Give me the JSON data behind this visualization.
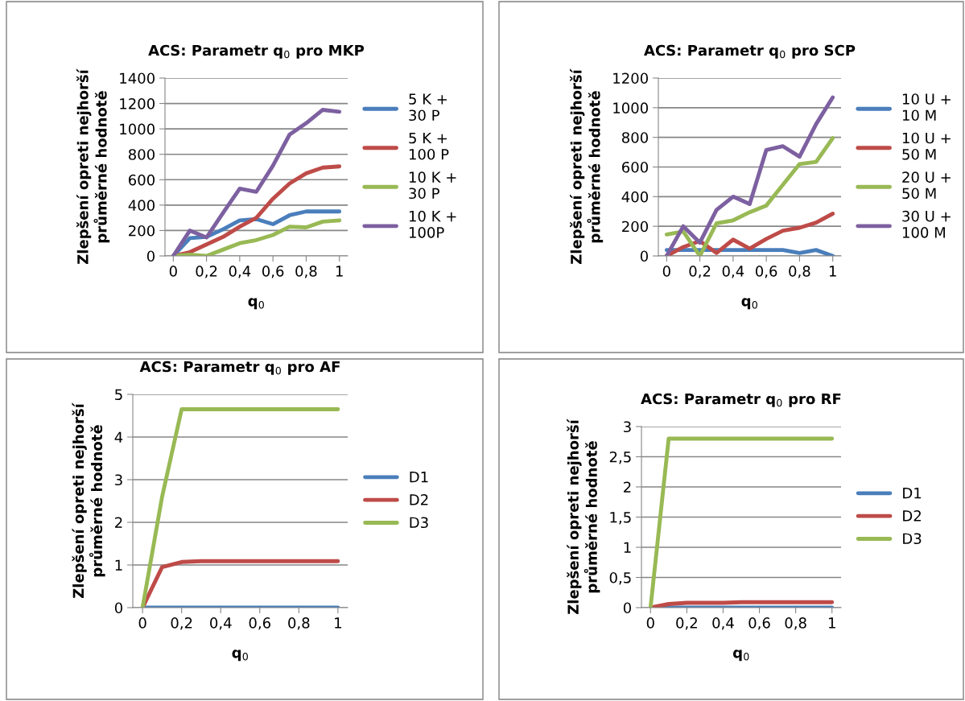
{
  "chart_data": [
    {
      "type": "line",
      "title": "ACS: Parametr q$_{0}$ pro MKP",
      "xlabel": "q$_{0}$",
      "ylabel": "Zlepšení opreti nejhorší\nprůměrné hodnotě",
      "x": [
        0,
        0.1,
        0.2,
        0.3,
        0.4,
        0.5,
        0.6,
        0.7,
        0.8,
        0.9,
        1
      ],
      "xlim": [
        -0.05,
        1.05
      ],
      "xticks": [
        0,
        {
          "value": 0.2,
          "label": "0,2"
        },
        {
          "value": 0.4,
          "label": "0,4"
        },
        {
          "value": 0.6,
          "label": "0,6"
        },
        {
          "value": 0.8,
          "label": "0,8"
        },
        1
      ],
      "ylim": [
        0,
        1400
      ],
      "yticks": [
        0,
        200,
        400,
        600,
        800,
        1000,
        1200,
        1400
      ],
      "grid": "y",
      "legend": "right",
      "series": [
        {
          "name": "5 K +\n30 P",
          "color": "#4a7ebb",
          "values": [
            0,
            140,
            150,
            210,
            280,
            290,
            250,
            320,
            350,
            350,
            350
          ]
        },
        {
          "name": "5 K +\n100 P",
          "color": "#be4b48",
          "values": [
            0,
            30,
            90,
            150,
            230,
            300,
            450,
            570,
            650,
            695,
            705
          ]
        },
        {
          "name": "10 K +\n30 P",
          "color": "#98b954",
          "values": [
            0,
            10,
            0,
            50,
            100,
            125,
            165,
            230,
            225,
            270,
            280
          ]
        },
        {
          "name": "10 K +\n100P",
          "color": "#7d60a0",
          "values": [
            0,
            200,
            145,
            340,
            530,
            505,
            710,
            955,
            1045,
            1150,
            1135
          ]
        }
      ]
    },
    {
      "type": "line",
      "title": "ACS: Parametr q$_{0}$ pro SCP",
      "xlabel": "q$_{0}$",
      "ylabel": "Zlepšení opreti nejhorší\nprůměrné hodnotě",
      "x": [
        0,
        0.1,
        0.2,
        0.3,
        0.4,
        0.5,
        0.6,
        0.7,
        0.8,
        0.9,
        1
      ],
      "xlim": [
        -0.05,
        1.05
      ],
      "xticks": [
        0,
        {
          "value": 0.2,
          "label": "0,2"
        },
        {
          "value": 0.4,
          "label": "0,4"
        },
        {
          "value": 0.6,
          "label": "0,6"
        },
        {
          "value": 0.8,
          "label": "0,8"
        },
        1
      ],
      "ylim": [
        0,
        1200
      ],
      "yticks": [
        0,
        200,
        400,
        600,
        800,
        1000,
        1200
      ],
      "grid": "y",
      "legend": "right",
      "series": [
        {
          "name": "10 U +\n10 M",
          "color": "#4a7ebb",
          "values": [
            40,
            40,
            40,
            40,
            40,
            40,
            40,
            40,
            20,
            40,
            0
          ]
        },
        {
          "name": "10 U +\n50 M",
          "color": "#be4b48",
          "values": [
            0,
            60,
            100,
            20,
            110,
            50,
            115,
            170,
            190,
            225,
            285
          ]
        },
        {
          "name": "20 U +\n50 M",
          "color": "#98b954",
          "values": [
            145,
            165,
            0,
            220,
            240,
            295,
            340,
            480,
            620,
            635,
            795
          ]
        },
        {
          "name": "30 U +\n100 M",
          "color": "#7d60a0",
          "values": [
            0,
            200,
            90,
            310,
            400,
            350,
            715,
            740,
            670,
            890,
            1070
          ]
        }
      ]
    },
    {
      "type": "line",
      "title": "ACS: Parametr q$_{0}$ pro AF",
      "xlabel": "q$_{0}$",
      "ylabel": "Zlepšení opreti nejhorší\nprůměrné hodnotě",
      "x": [
        0,
        0.1,
        0.2,
        0.3,
        0.4,
        0.5,
        0.6,
        0.7,
        0.8,
        0.9,
        1
      ],
      "xlim": [
        -0.05,
        1.05
      ],
      "xticks": [
        0,
        {
          "value": 0.2,
          "label": "0,2"
        },
        {
          "value": 0.4,
          "label": "0,4"
        },
        {
          "value": 0.6,
          "label": "0,6"
        },
        {
          "value": 0.8,
          "label": "0,8"
        },
        1
      ],
      "ylim": [
        0,
        5
      ],
      "yticks": [
        0,
        1,
        2,
        3,
        4,
        5
      ],
      "grid": "y",
      "legend": "right",
      "series": [
        {
          "name": "D1",
          "color": "#4a7ebb",
          "values": [
            0,
            0,
            0,
            0,
            0,
            0,
            0,
            0,
            0,
            0,
            0
          ]
        },
        {
          "name": "D2",
          "color": "#be4b48",
          "values": [
            0,
            0.95,
            1.07,
            1.09,
            1.09,
            1.09,
            1.09,
            1.09,
            1.09,
            1.09,
            1.09
          ]
        },
        {
          "name": "D3",
          "color": "#98b954",
          "values": [
            0,
            2.6,
            4.65,
            4.65,
            4.65,
            4.65,
            4.65,
            4.65,
            4.65,
            4.65,
            4.65
          ]
        }
      ]
    },
    {
      "type": "line",
      "title": "ACS: Parametr q$_{0}$ pro RF",
      "xlabel": "q$_{0}$",
      "ylabel": "Zlepšení opreti nejhorší\nprůměrné hodnotě",
      "x": [
        0,
        0.1,
        0.2,
        0.3,
        0.4,
        0.5,
        0.6,
        0.7,
        0.8,
        0.9,
        1
      ],
      "xlim": [
        -0.05,
        1.05
      ],
      "xticks": [
        0,
        {
          "value": 0.2,
          "label": "0,2"
        },
        {
          "value": 0.4,
          "label": "0,4"
        },
        {
          "value": 0.6,
          "label": "0,6"
        },
        {
          "value": 0.8,
          "label": "0,8"
        },
        1
      ],
      "ylim": [
        0,
        3
      ],
      "yticks": [
        0,
        {
          "value": 0.5,
          "label": "0,5"
        },
        1,
        {
          "value": 1.5,
          "label": "1,5"
        },
        2,
        {
          "value": 2.5,
          "label": "2,5"
        },
        3
      ],
      "grid": "y",
      "legend": "right",
      "series": [
        {
          "name": "D1",
          "color": "#4a7ebb",
          "values": [
            0,
            0,
            0,
            0,
            0,
            0,
            0,
            0,
            0,
            0,
            0
          ]
        },
        {
          "name": "D2",
          "color": "#be4b48",
          "values": [
            0,
            0.06,
            0.08,
            0.08,
            0.08,
            0.09,
            0.09,
            0.09,
            0.09,
            0.09,
            0.09
          ]
        },
        {
          "name": "D3",
          "color": "#98b954",
          "values": [
            0,
            2.8,
            2.8,
            2.8,
            2.8,
            2.8,
            2.8,
            2.8,
            2.8,
            2.8,
            2.8
          ]
        }
      ]
    }
  ]
}
